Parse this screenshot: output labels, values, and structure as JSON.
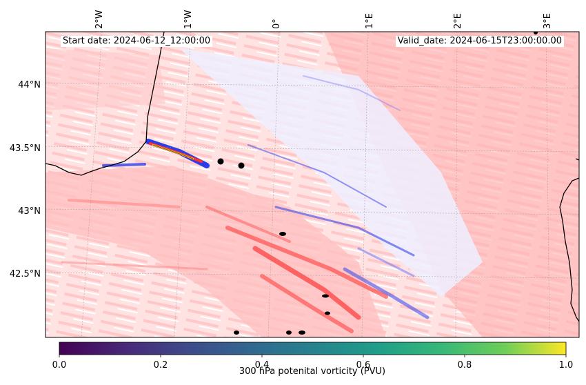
{
  "header": {
    "start_date": "Start date: 2024-06-12_12:00:00",
    "valid_date": "Valid_date: 2024-06-15T23:00:00.00"
  },
  "map": {
    "lon_labels": [
      "2°W",
      "1°W",
      "0°",
      "1°E",
      "2°E",
      "3°E"
    ],
    "lat_labels": [
      "44°N",
      "43.5°N",
      "43°N",
      "42.5°N"
    ],
    "extent": {
      "lon_min": -2.5,
      "lon_max": 3.3,
      "lat_min": 41.99,
      "lat_max": 44.42
    },
    "field_colors": {
      "positive": "#ff3333",
      "negative": "#3344ee",
      "background": "#fff0f0"
    }
  },
  "colorbar": {
    "label": "300 hPa potenital vorticity (PVU)",
    "ticks": [
      "0.0",
      "0.2",
      "0.4",
      "0.6",
      "0.8",
      "1.0"
    ],
    "range": [
      0.0,
      1.0
    ],
    "colormap": "viridis",
    "colors": [
      "#440154",
      "#3b528b",
      "#21918c",
      "#5ec962",
      "#fde725"
    ]
  }
}
